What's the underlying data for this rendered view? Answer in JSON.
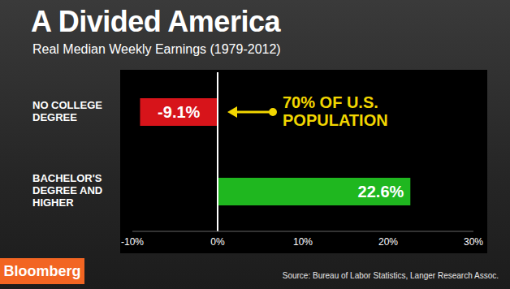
{
  "chart_data": {
    "type": "bar",
    "orientation": "horizontal",
    "title": "A Divided America",
    "subtitle": "Real Median Weekly Earnings (1979-2012)",
    "categories": [
      "NO COLLEGE DEGREE",
      "BACHELOR'S DEGREE AND HIGHER"
    ],
    "values": [
      -9.1,
      22.6
    ],
    "value_labels": [
      "-9.1%",
      "22.6%"
    ],
    "data_labels": true,
    "colors": [
      "#d7141a",
      "#1fb71f"
    ],
    "xlim": [
      -10,
      30
    ],
    "xticks": [
      {
        "value": -10,
        "label": "-10%"
      },
      {
        "value": 0,
        "label": "0%"
      },
      {
        "value": 10,
        "label": "10%"
      },
      {
        "value": 20,
        "label": "20%"
      },
      {
        "value": 30,
        "label": "30%"
      }
    ],
    "grid": false,
    "annotations": [
      {
        "text": "70% OF U.S. POPULATION",
        "color": "#f2d600"
      }
    ],
    "source": "Source: Bureau of Labor Statistics, Langer Research Assoc.",
    "logo": "Bloomberg"
  }
}
